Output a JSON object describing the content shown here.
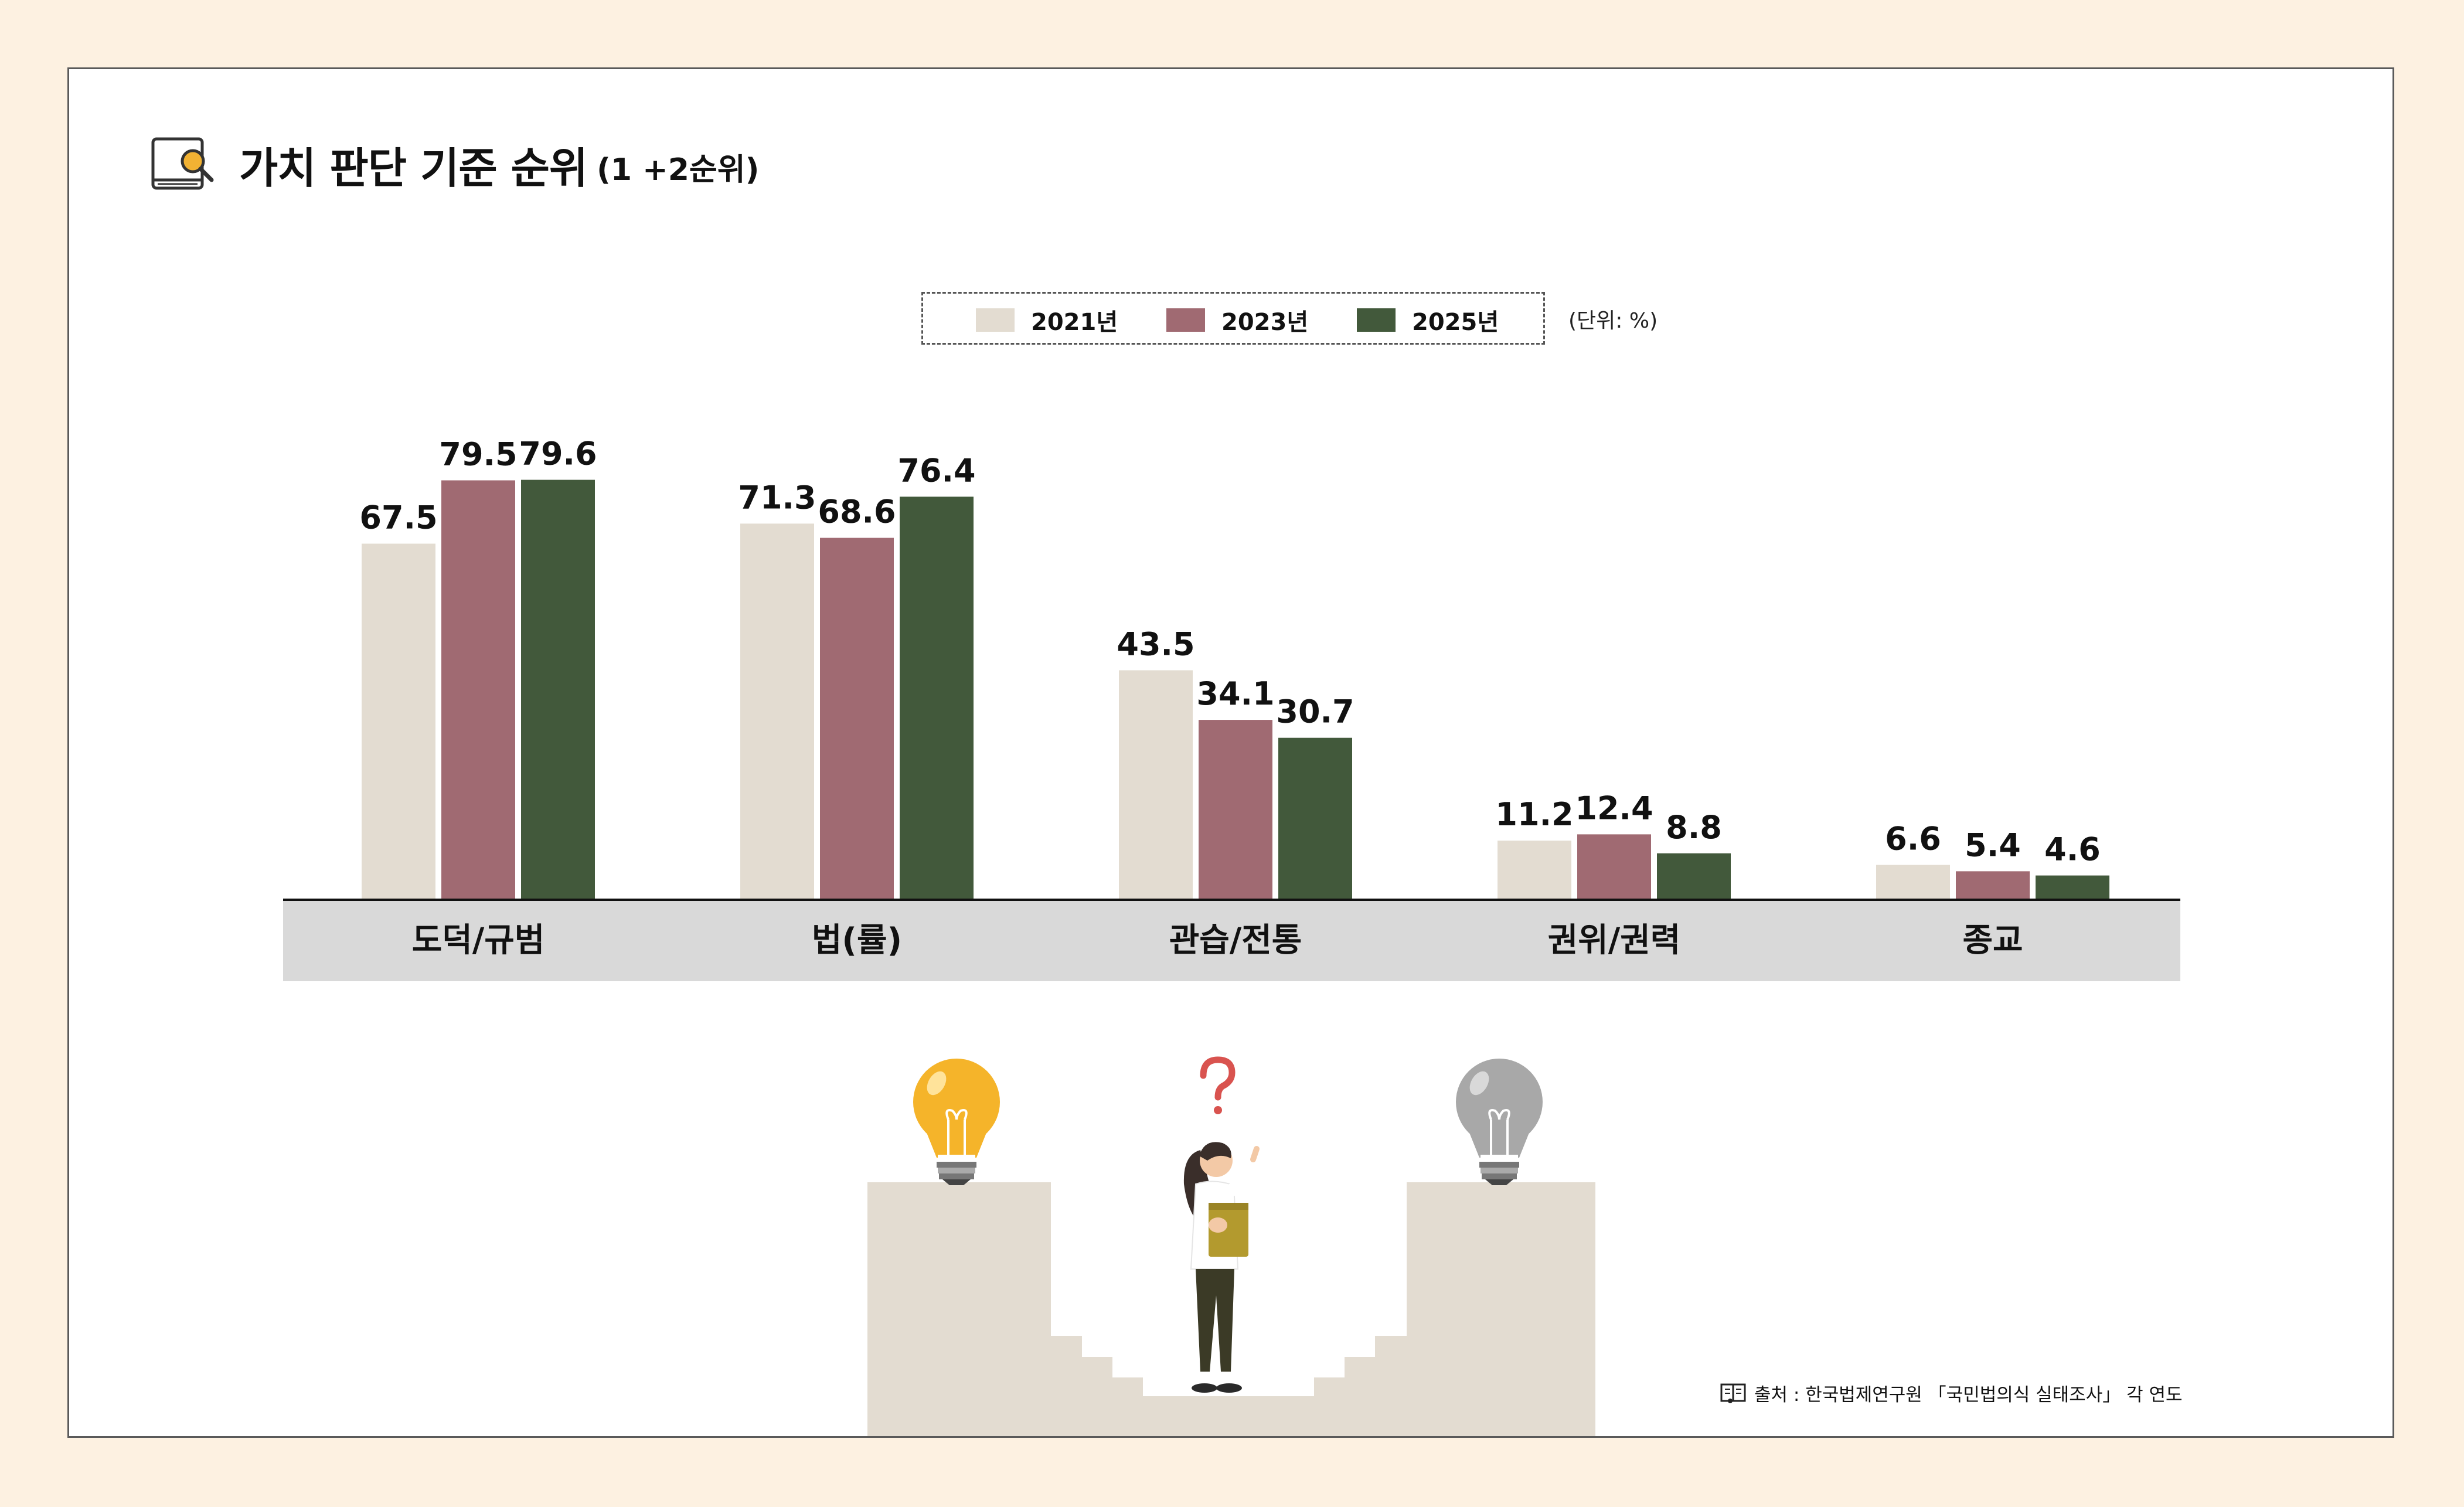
{
  "title": {
    "main": "가치 판단 기준 순위",
    "sub": "(1 +2순위)",
    "icon": "book-search-icon"
  },
  "legend": {
    "items": [
      {
        "label": "2021년",
        "color": "#e3dcd1"
      },
      {
        "label": "2023년",
        "color": "#a06a72"
      },
      {
        "label": "2025년",
        "color": "#42593b"
      }
    ]
  },
  "unit": "(단위: %)",
  "source": {
    "icon": "book-icon",
    "text": "출처 : 한국법제연구원 「국민법의식 실태조사」 각 연도"
  },
  "illustration": {
    "icons": [
      "lit-lightbulb-icon",
      "question-mark-icon",
      "unlit-lightbulb-icon",
      "woman-holding-book-icon",
      "staircase"
    ]
  },
  "chart_data": {
    "type": "bar",
    "title": "가치 판단 기준 순위",
    "categories": [
      "도덕/규범",
      "법(률)",
      "관습/전통",
      "권위/권력",
      "종교"
    ],
    "series": [
      {
        "name": "2021년",
        "color": "#e3dcd1",
        "values": [
          67.5,
          71.3,
          43.5,
          11.2,
          6.6
        ]
      },
      {
        "name": "2023년",
        "color": "#a06a72",
        "values": [
          79.5,
          68.6,
          34.1,
          12.4,
          5.4
        ]
      },
      {
        "name": "2025년",
        "color": "#42593b",
        "values": [
          79.6,
          76.4,
          30.7,
          8.8,
          4.6
        ]
      }
    ],
    "value_labels": true,
    "ylim": [
      0,
      80
    ],
    "grid": false,
    "legend_position": "top-center",
    "xlabel": "",
    "ylabel": ""
  }
}
